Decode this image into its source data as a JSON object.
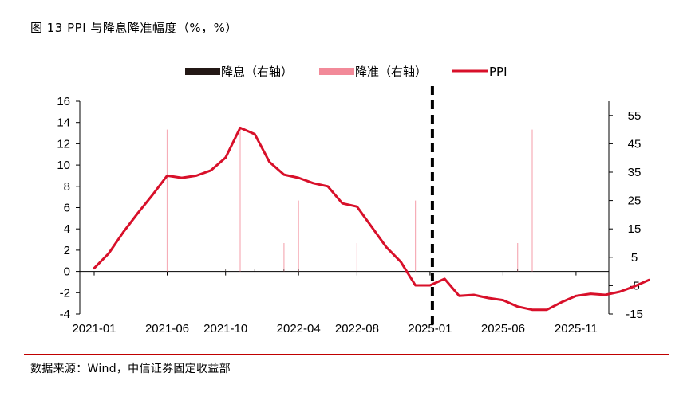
{
  "title": "图 13 PPI 与降息降准幅度（%，%）",
  "source": "数据来源：Wind，中信证券固定收益部",
  "colors": {
    "ppi": "#d8102a",
    "cut_rate": "#231815",
    "cut_rrr": "#f28a99",
    "rule": "#c00000"
  },
  "chart_data": {
    "type": "line",
    "legend": [
      {
        "name": "降息（右轴）",
        "type": "bar"
      },
      {
        "name": "降准（右轴）",
        "type": "bar"
      },
      {
        "name": "PPI",
        "type": "line"
      }
    ],
    "left_axis": {
      "ylim": [
        -4,
        16
      ],
      "ticks": [
        "16",
        "14",
        "12",
        "10",
        "8",
        "6",
        "4",
        "2",
        "0",
        "-2",
        "-4"
      ]
    },
    "right_axis": {
      "ylim": [
        -15,
        60
      ],
      "ticks": [
        "55",
        "45",
        "35",
        "25",
        "15",
        "5",
        "-5",
        "-15"
      ]
    },
    "x_tick_labels": [
      "2021-01",
      "2021-06",
      "2021-10",
      "2022-04",
      "2022-08",
      "2025-01",
      "2025-06",
      "2025-11"
    ],
    "x_tick_index": [
      0,
      5,
      9,
      14,
      18,
      23,
      28,
      33
    ],
    "divider_index": 23,
    "series": [
      {
        "name": "PPI",
        "axis": "left",
        "values": [
          0.3,
          1.7,
          3.7,
          5.5,
          7.2,
          9.0,
          8.8,
          9.0,
          9.5,
          10.7,
          13.5,
          12.9,
          10.3,
          9.1,
          8.8,
          8.3,
          8.0,
          6.4,
          6.1,
          4.2,
          2.3,
          0.9,
          -1.3,
          -1.3,
          -0.7,
          -2.3,
          -2.2,
          -2.5,
          -2.7,
          -3.3,
          -3.6,
          -3.6,
          -2.9,
          -2.3,
          -2.1,
          -2.2,
          -1.9,
          -1.4,
          -0.8
        ]
      },
      {
        "name": "降准（右轴）",
        "axis": "right",
        "values": [
          {
            "i": 5,
            "v": 50
          },
          {
            "i": 10,
            "v": 50
          },
          {
            "i": 13,
            "v": 10
          },
          {
            "i": 14,
            "v": 25
          },
          {
            "i": 18,
            "v": 10
          },
          {
            "i": 22,
            "v": 25
          },
          {
            "i": 29,
            "v": 10
          },
          {
            "i": 30,
            "v": 50
          }
        ]
      },
      {
        "name": "降息（右轴）",
        "axis": "right",
        "values": [
          {
            "i": 9,
            "v": 1
          },
          {
            "i": 11,
            "v": 1
          },
          {
            "i": 13,
            "v": 1
          },
          {
            "i": 14,
            "v": 1
          },
          {
            "i": 29,
            "v": 1
          }
        ]
      }
    ]
  }
}
